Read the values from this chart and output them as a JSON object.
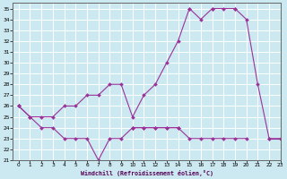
{
  "xlabel": "Windchill (Refroidissement éolien,°C)",
  "background_color": "#cce8f0",
  "grid_color": "#ffffff",
  "line_color": "#993399",
  "x_values": [
    0,
    1,
    2,
    3,
    4,
    5,
    6,
    7,
    8,
    9,
    10,
    11,
    12,
    13,
    14,
    15,
    16,
    17,
    18,
    19,
    20,
    21,
    22,
    23
  ],
  "series_zigzag": [
    26,
    25,
    24,
    24,
    23,
    23,
    23,
    21,
    23,
    23,
    24,
    24,
    24,
    24,
    24,
    null,
    null,
    null,
    null,
    null,
    null,
    null,
    null,
    null
  ],
  "series_flat": [
    null,
    null,
    null,
    null,
    null,
    null,
    null,
    null,
    null,
    null,
    24,
    24,
    24,
    24,
    24,
    23,
    23,
    23,
    23,
    23,
    23,
    null,
    23,
    23
  ],
  "series_rise": [
    26,
    25,
    25,
    25,
    26,
    26,
    27,
    27,
    28,
    28,
    25,
    27,
    28,
    30,
    32,
    35,
    34,
    35,
    35,
    35,
    null,
    null,
    null,
    null
  ],
  "series_peak": [
    26,
    null,
    null,
    null,
    null,
    null,
    null,
    null,
    null,
    null,
    24,
    null,
    null,
    null,
    null,
    35,
    null,
    35,
    null,
    35,
    34,
    28,
    23,
    23
  ],
  "ylim_min": 21,
  "ylim_max": 35.5,
  "xlim_min": -0.5,
  "xlim_max": 23,
  "yticks": [
    21,
    22,
    23,
    24,
    25,
    26,
    27,
    28,
    29,
    30,
    31,
    32,
    33,
    34,
    35
  ],
  "xticks": [
    0,
    1,
    2,
    3,
    4,
    5,
    6,
    7,
    8,
    9,
    10,
    11,
    12,
    13,
    14,
    15,
    16,
    17,
    18,
    19,
    20,
    21,
    22,
    23
  ]
}
